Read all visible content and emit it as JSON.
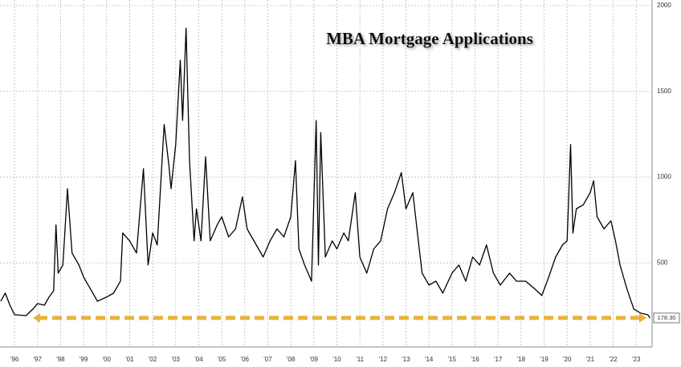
{
  "chart_data": {
    "type": "line",
    "title": "MBA Mortgage Applications",
    "x": [
      1995.4,
      1995.6,
      1995.8,
      1996.0,
      1996.5,
      1996.8,
      1997.0,
      1997.3,
      1997.5,
      1997.7,
      1997.8,
      1997.9,
      1998.1,
      1998.3,
      1998.5,
      1998.8,
      1999.0,
      1999.3,
      1999.6,
      2000.0,
      2000.3,
      2000.6,
      2000.7,
      2001.0,
      2001.3,
      2001.6,
      2001.8,
      2002.0,
      2002.2,
      2002.5,
      2002.7,
      2002.8,
      2003.0,
      2003.2,
      2003.3,
      2003.45,
      2003.6,
      2003.8,
      2003.9,
      2004.1,
      2004.3,
      2004.5,
      2004.8,
      2005.0,
      2005.3,
      2005.6,
      2005.9,
      2006.1,
      2006.5,
      2006.8,
      2007.1,
      2007.4,
      2007.7,
      2008.0,
      2008.2,
      2008.35,
      2008.6,
      2008.9,
      2009.1,
      2009.2,
      2009.3,
      2009.5,
      2009.8,
      2010.0,
      2010.3,
      2010.5,
      2010.8,
      2011.0,
      2011.3,
      2011.6,
      2011.9,
      2012.2,
      2012.5,
      2012.8,
      2013.0,
      2013.3,
      2013.5,
      2013.7,
      2014.0,
      2014.3,
      2014.6,
      2015.0,
      2015.3,
      2015.6,
      2015.9,
      2016.2,
      2016.5,
      2016.8,
      2017.1,
      2017.5,
      2017.8,
      2018.2,
      2018.6,
      2018.9,
      2019.2,
      2019.5,
      2019.8,
      2020.0,
      2020.15,
      2020.25,
      2020.4,
      2020.7,
      2021.0,
      2021.15,
      2021.3,
      2021.6,
      2021.9,
      2022.1,
      2022.3,
      2022.6,
      2022.9,
      2023.2,
      2023.5,
      2023.6
    ],
    "series": [
      {
        "color": "#000000",
        "values": [
          276,
          323,
          253,
          197,
          192,
          230,
          262,
          253,
          300,
          337,
          721,
          440,
          487,
          932,
          557,
          487,
          417,
          347,
          276,
          300,
          323,
          393,
          674,
          628,
          557,
          1049,
          487,
          674,
          604,
          1307,
          1073,
          932,
          1190,
          1682,
          1330,
          1869,
          1096,
          628,
          815,
          628,
          1119,
          628,
          721,
          768,
          651,
          698,
          885,
          698,
          604,
          534,
          628,
          698,
          651,
          768,
          1096,
          581,
          487,
          393,
          1330,
          487,
          1260,
          534,
          628,
          581,
          674,
          628,
          909,
          534,
          440,
          581,
          628,
          815,
          909,
          1026,
          815,
          909,
          674,
          440,
          370,
          393,
          323,
          440,
          487,
          393,
          534,
          487,
          604,
          440,
          370,
          440,
          393,
          393,
          347,
          309,
          417,
          534,
          604,
          628,
          1190,
          674,
          815,
          838,
          909,
          979,
          768,
          698,
          745,
          628,
          487,
          347,
          230,
          206,
          197,
          178.3
        ]
      }
    ],
    "xlim": [
      1995.37,
      2023.69
    ],
    "ylim": [
      0,
      2000
    ],
    "xticks": [
      {
        "value": 1996,
        "label": "'96"
      },
      {
        "value": 1997,
        "label": "'97"
      },
      {
        "value": 1998,
        "label": "'98"
      },
      {
        "value": 1999,
        "label": "'99"
      },
      {
        "value": 2000,
        "label": "'00"
      },
      {
        "value": 2001,
        "label": "'01"
      },
      {
        "value": 2002,
        "label": "'02"
      },
      {
        "value": 2003,
        "label": "'03"
      },
      {
        "value": 2004,
        "label": "'04"
      },
      {
        "value": 2005,
        "label": "'05"
      },
      {
        "value": 2006,
        "label": "'06"
      },
      {
        "value": 2007,
        "label": "'07"
      },
      {
        "value": 2008,
        "label": "'08"
      },
      {
        "value": 2009,
        "label": "'09"
      },
      {
        "value": 2010,
        "label": "'10"
      },
      {
        "value": 2011,
        "label": "'11"
      },
      {
        "value": 2012,
        "label": "'12"
      },
      {
        "value": 2013,
        "label": "'13"
      },
      {
        "value": 2014,
        "label": "'14"
      },
      {
        "value": 2015,
        "label": "'15"
      },
      {
        "value": 2016,
        "label": "'16"
      },
      {
        "value": 2017,
        "label": "'17"
      },
      {
        "value": 2018,
        "label": "'18"
      },
      {
        "value": 2019,
        "label": "'19"
      },
      {
        "value": 2020,
        "label": "'20"
      },
      {
        "value": 2021,
        "label": "'21"
      },
      {
        "value": 2022,
        "label": "'22"
      },
      {
        "value": 2023,
        "label": "'23"
      }
    ],
    "yticks": [
      500,
      1000,
      1500,
      2000
    ],
    "grid": true,
    "marker_line": {
      "value": 178.3,
      "label": "178.30",
      "from": 1996.8,
      "color": "#e8b339"
    }
  }
}
